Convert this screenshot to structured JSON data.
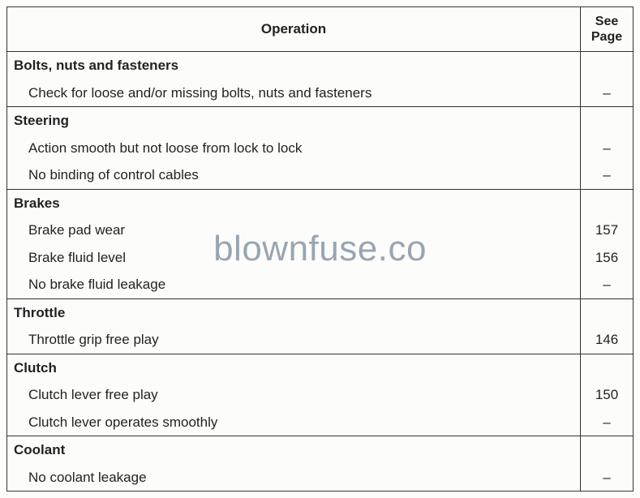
{
  "header": {
    "operation_label": "Operation",
    "page_label": "See\nPage"
  },
  "sections": [
    {
      "title": "Bolts, nuts and fasteners",
      "items": [
        {
          "text": "Check for loose and/or missing bolts, nuts and fasteners",
          "page": "–"
        }
      ]
    },
    {
      "title": "Steering",
      "items": [
        {
          "text": "Action smooth but not loose from lock to lock",
          "page": "–"
        },
        {
          "text": "No binding of control cables",
          "page": "–"
        }
      ]
    },
    {
      "title": "Brakes",
      "items": [
        {
          "text": "Brake pad wear",
          "page": "157"
        },
        {
          "text": "Brake fluid level",
          "page": "156"
        },
        {
          "text": "No brake fluid leakage",
          "page": "–"
        }
      ]
    },
    {
      "title": "Throttle",
      "items": [
        {
          "text": "Throttle grip free play",
          "page": "146"
        }
      ]
    },
    {
      "title": "Clutch",
      "items": [
        {
          "text": "Clutch lever free play",
          "page": "150"
        },
        {
          "text": "Clutch lever operates smoothly",
          "page": "–"
        }
      ]
    },
    {
      "title": "Coolant",
      "items": [
        {
          "text": "No coolant leakage",
          "page": "–"
        }
      ]
    }
  ],
  "watermark": "blownfuse.co",
  "colors": {
    "background": "#fcfdfb",
    "border": "#333333",
    "text": "#222222",
    "watermark": "#8896a5"
  }
}
